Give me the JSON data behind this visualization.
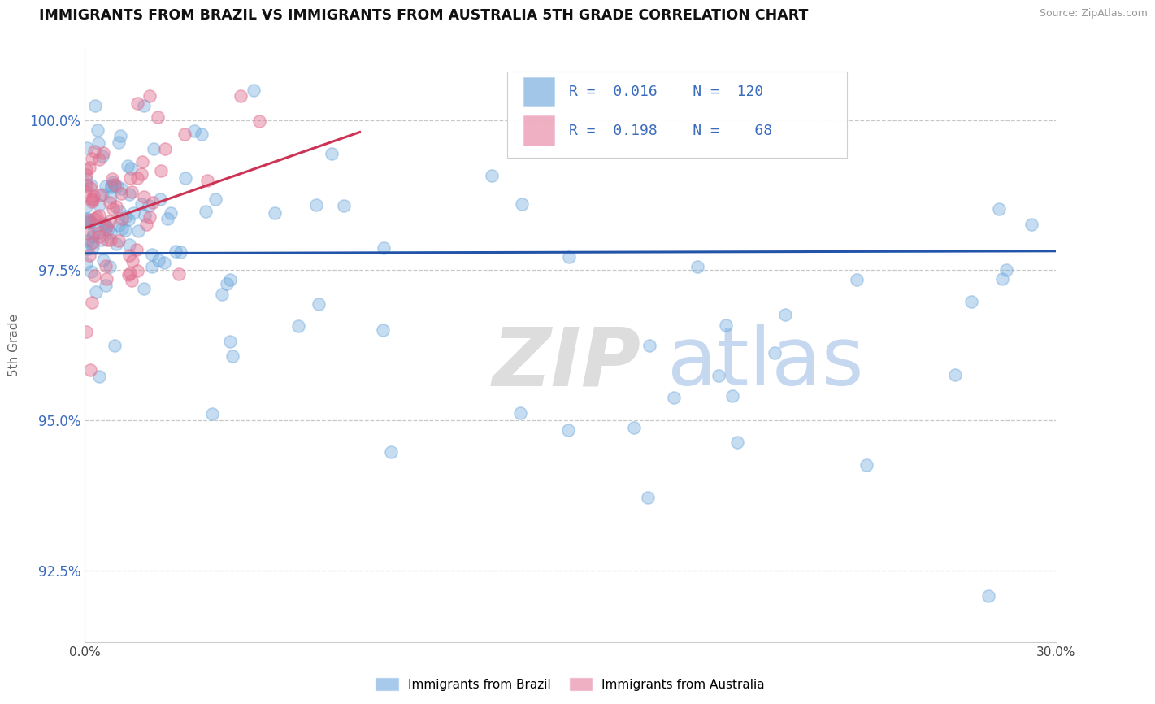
{
  "title": "IMMIGRANTS FROM BRAZIL VS IMMIGRANTS FROM AUSTRALIA 5TH GRADE CORRELATION CHART",
  "source": "Source: ZipAtlas.com",
  "ylabel": "5th Grade",
  "yaxis_values": [
    92.5,
    95.0,
    97.5,
    100.0
  ],
  "xlim": [
    0.0,
    30.0
  ],
  "ylim": [
    91.3,
    101.2
  ],
  "legend_brazil": "Immigrants from Brazil",
  "legend_australia": "Immigrants from Australia",
  "R_brazil": 0.016,
  "N_brazil": 120,
  "R_australia": 0.198,
  "N_australia": 68,
  "color_brazil": "#6fa8dc",
  "color_australia": "#e07090",
  "color_trendline_brazil": "#2255aa",
  "color_trendline_australia": "#cc3355",
  "brazil_trend_y0": 97.78,
  "brazil_trend_y1": 97.82,
  "brazil_trend_x0": 0.0,
  "brazil_trend_x1": 30.0,
  "australia_trend_x0": 0.0,
  "australia_trend_x1": 8.5,
  "australia_trend_y0": 98.2,
  "australia_trend_y1": 99.8
}
